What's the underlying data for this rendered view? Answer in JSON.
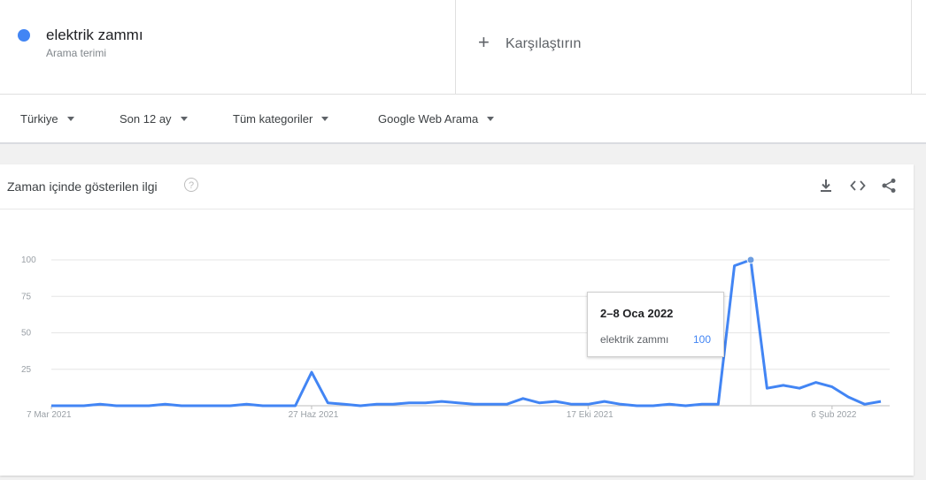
{
  "search_term": {
    "name": "elektrik zammı",
    "sublabel": "Arama terimi",
    "color": "#4285f4"
  },
  "compare": {
    "label": "Karşılaştırın"
  },
  "filters": [
    {
      "label": "Türkiye"
    },
    {
      "label": "Son 12 ay"
    },
    {
      "label": "Tüm kategoriler"
    },
    {
      "label": "Google Web Arama"
    }
  ],
  "card": {
    "title": "Zaman içinde gösterilen ilgi",
    "icons": [
      "download-icon",
      "embed-icon",
      "share-icon"
    ]
  },
  "tooltip": {
    "date": "2–8 Oca 2022",
    "series_name": "elektrik zammı",
    "value": "100"
  },
  "chart_data": {
    "type": "line",
    "ylim": [
      0,
      100
    ],
    "yticks": [
      25,
      50,
      75,
      100
    ],
    "x_labels": [
      "7 Mar 2021",
      "27 Haz 2021",
      "17 Eki 2021",
      "6 Şub 2022"
    ],
    "grid": true,
    "series": [
      {
        "color": "#4285f4",
        "values": [
          0,
          0,
          0,
          1,
          0,
          0,
          0,
          1,
          0,
          0,
          0,
          0,
          1,
          0,
          0,
          0,
          23,
          2,
          1,
          0,
          1,
          1,
          2,
          2,
          3,
          2,
          1,
          1,
          1,
          5,
          2,
          3,
          1,
          1,
          3,
          1,
          0,
          0,
          1,
          0,
          1,
          1,
          96,
          100,
          12,
          14,
          12,
          16,
          13,
          6,
          1,
          3
        ]
      }
    ],
    "highlight_index": 43
  }
}
